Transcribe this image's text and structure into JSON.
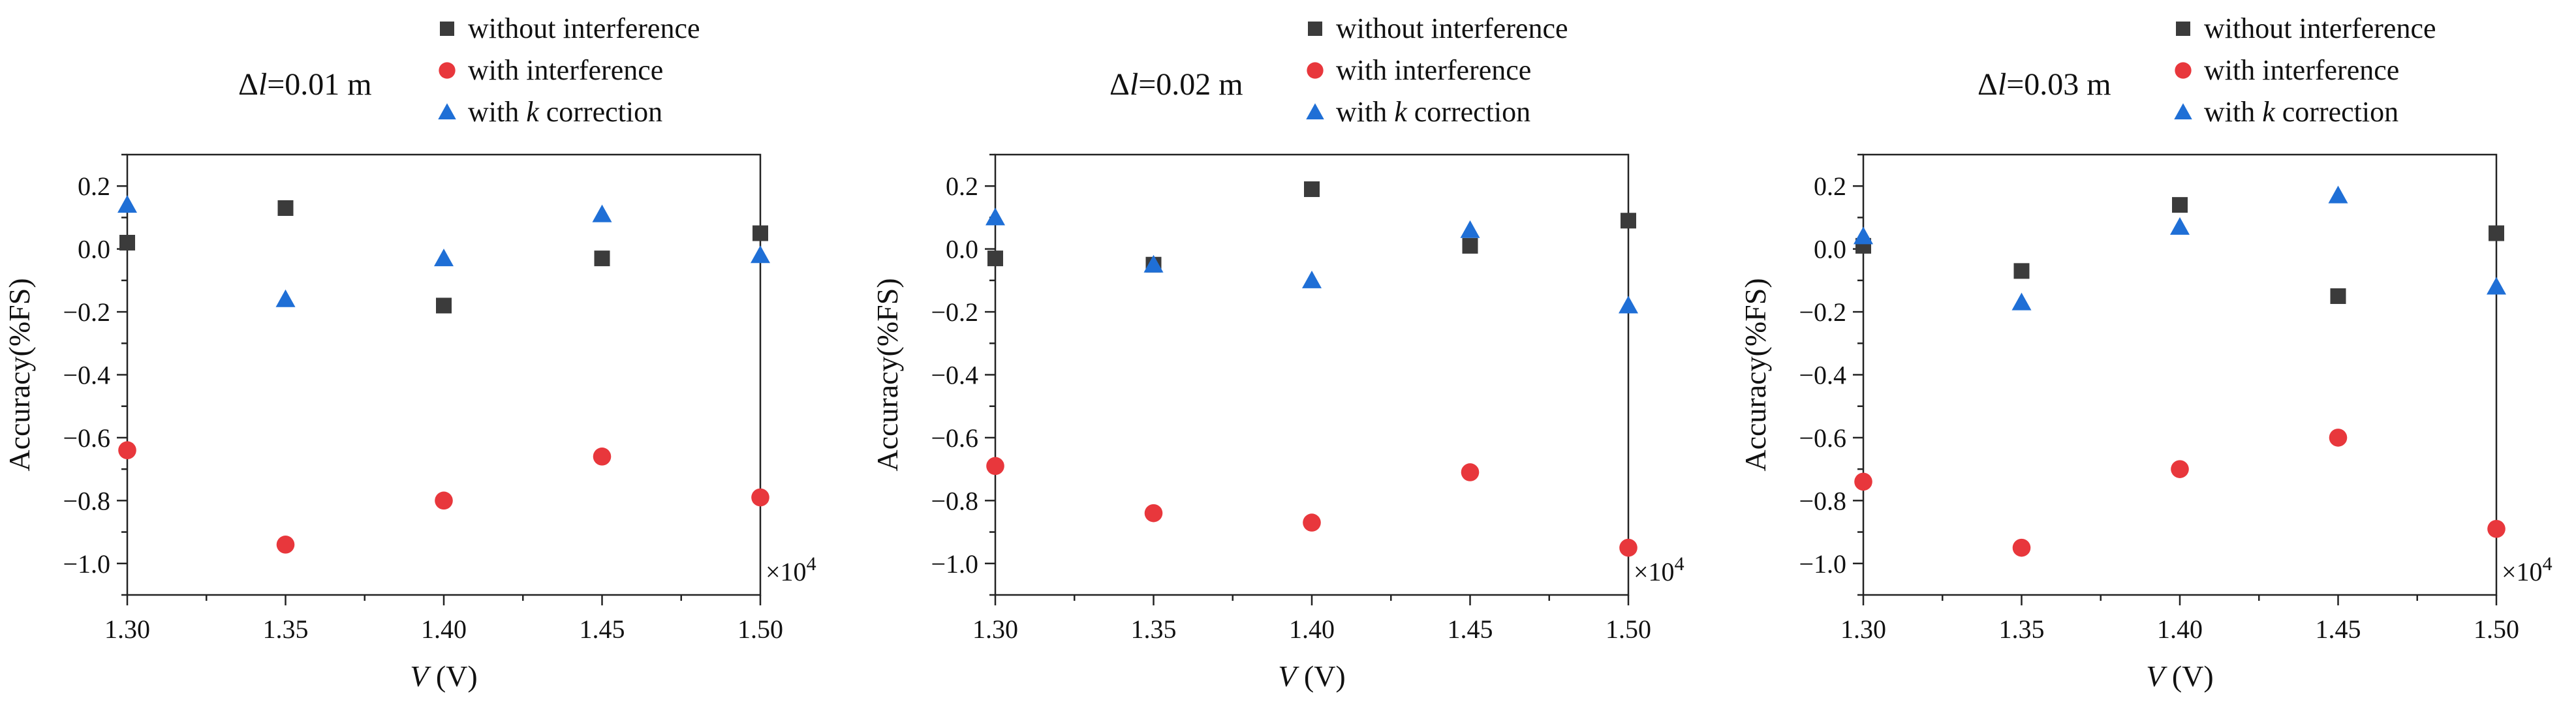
{
  "chart_data": [
    {
      "type": "scatter",
      "title": "Δl=0.01 m",
      "title_parts": [
        "Δ",
        "l",
        "=0.01 m"
      ],
      "xlabel_parts": [
        "V",
        " (V)"
      ],
      "ylabel": "Accuracy(%FS)",
      "x_multiplier": "×10^4",
      "x_multiplier_parts": [
        "×10",
        "4"
      ],
      "xlim": [
        1.3,
        1.5
      ],
      "ylim": [
        -1.1,
        0.3
      ],
      "x_ticks": [
        1.3,
        1.35,
        1.4,
        1.45,
        1.5
      ],
      "x_tick_labels": [
        "1.30",
        "1.35",
        "1.40",
        "1.45",
        "1.50"
      ],
      "y_ticks": [
        0.2,
        0.0,
        -0.2,
        -0.4,
        -0.6,
        -0.8,
        -1.0
      ],
      "y_tick_labels": [
        "0.2",
        "0.0",
        "−0.2",
        "−0.4",
        "−0.6",
        "−0.8",
        "−1.0"
      ],
      "x": [
        1.3,
        1.35,
        1.4,
        1.45,
        1.5
      ],
      "legend_position": "top-right, outside plot",
      "series": [
        {
          "name": "without interference",
          "marker": "square",
          "color": "#3b3b3b",
          "values": [
            0.02,
            0.13,
            -0.18,
            -0.03,
            0.05
          ]
        },
        {
          "name": "with interference",
          "marker": "circle",
          "color": "#e8373c",
          "values": [
            -0.64,
            -0.94,
            -0.8,
            -0.66,
            -0.79
          ]
        },
        {
          "name_parts": [
            "with ",
            "k",
            " correction"
          ],
          "name": "with k correction",
          "marker": "triangle",
          "color": "#1f6fd6",
          "values": [
            0.14,
            -0.16,
            -0.03,
            0.11,
            -0.02
          ]
        }
      ]
    },
    {
      "type": "scatter",
      "title": "Δl=0.02 m",
      "title_parts": [
        "Δ",
        "l",
        "=0.02 m"
      ],
      "xlabel_parts": [
        "V",
        " (V)"
      ],
      "ylabel": "Accuracy(%FS)",
      "x_multiplier": "×10^4",
      "x_multiplier_parts": [
        "×10",
        "4"
      ],
      "xlim": [
        1.3,
        1.5
      ],
      "ylim": [
        -1.1,
        0.3
      ],
      "x_ticks": [
        1.3,
        1.35,
        1.4,
        1.45,
        1.5
      ],
      "x_tick_labels": [
        "1.30",
        "1.35",
        "1.40",
        "1.45",
        "1.50"
      ],
      "y_ticks": [
        0.2,
        0.0,
        -0.2,
        -0.4,
        -0.6,
        -0.8,
        -1.0
      ],
      "y_tick_labels": [
        "0.2",
        "0.0",
        "−0.2",
        "−0.4",
        "−0.6",
        "−0.8",
        "−1.0"
      ],
      "x": [
        1.3,
        1.35,
        1.4,
        1.45,
        1.5
      ],
      "legend_position": "top-right, outside plot",
      "series": [
        {
          "name": "without interference",
          "marker": "square",
          "color": "#3b3b3b",
          "values": [
            -0.03,
            -0.05,
            0.19,
            0.01,
            0.09
          ]
        },
        {
          "name": "with interference",
          "marker": "circle",
          "color": "#e8373c",
          "values": [
            -0.69,
            -0.84,
            -0.87,
            -0.71,
            -0.95
          ]
        },
        {
          "name_parts": [
            "with ",
            "k",
            " correction"
          ],
          "name": "with k correction",
          "marker": "triangle",
          "color": "#1f6fd6",
          "values": [
            0.1,
            -0.05,
            -0.1,
            0.06,
            -0.18
          ]
        }
      ]
    },
    {
      "type": "scatter",
      "title": "Δl=0.03 m",
      "title_parts": [
        "Δ",
        "l",
        "=0.03 m"
      ],
      "xlabel_parts": [
        "V",
        " (V)"
      ],
      "ylabel": "Accuracy(%FS)",
      "x_multiplier": "×10^4",
      "x_multiplier_parts": [
        "×10",
        "4"
      ],
      "xlim": [
        1.3,
        1.5
      ],
      "ylim": [
        -1.1,
        0.3
      ],
      "x_ticks": [
        1.3,
        1.35,
        1.4,
        1.45,
        1.5
      ],
      "x_tick_labels": [
        "1.30",
        "1.35",
        "1.40",
        "1.45",
        "1.50"
      ],
      "y_ticks": [
        0.2,
        0.0,
        -0.2,
        -0.4,
        -0.6,
        -0.8,
        -1.0
      ],
      "y_tick_labels": [
        "0.2",
        "0.0",
        "−0.2",
        "−0.4",
        "−0.6",
        "−0.8",
        "−1.0"
      ],
      "x": [
        1.3,
        1.35,
        1.4,
        1.45,
        1.5
      ],
      "legend_position": "top-right, outside plot",
      "series": [
        {
          "name": "without interference",
          "marker": "square",
          "color": "#3b3b3b",
          "values": [
            0.01,
            -0.07,
            0.14,
            -0.15,
            0.05
          ]
        },
        {
          "name": "with interference",
          "marker": "circle",
          "color": "#e8373c",
          "values": [
            -0.74,
            -0.95,
            -0.7,
            -0.6,
            -0.89
          ]
        },
        {
          "name_parts": [
            "with ",
            "k",
            " correction"
          ],
          "name": "with k correction",
          "marker": "triangle",
          "color": "#1f6fd6",
          "values": [
            0.04,
            -0.17,
            0.07,
            0.17,
            -0.12
          ]
        }
      ]
    }
  ]
}
